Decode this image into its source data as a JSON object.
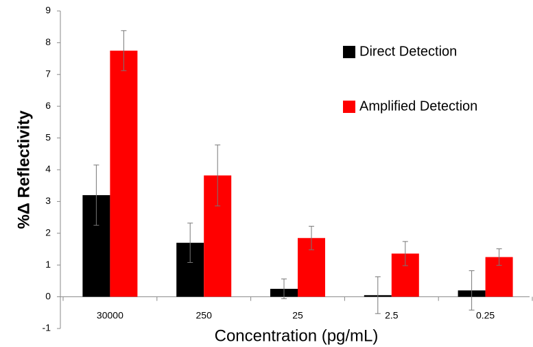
{
  "chart_data": {
    "type": "bar",
    "x_label": "Concentration (pg/mL)",
    "y_label": "%Δ Reflectivity",
    "categories": [
      "30000",
      "250",
      "25",
      "2.5",
      "0.25"
    ],
    "series": [
      {
        "name": "Direct Detection",
        "color": "#000000",
        "values": [
          3.2,
          1.7,
          0.25,
          0.05,
          0.2
        ],
        "errors": [
          0.95,
          0.62,
          0.31,
          0.58,
          0.62
        ]
      },
      {
        "name": "Amplified Detection",
        "color": "#ff0000",
        "values": [
          7.75,
          3.82,
          1.85,
          1.36,
          1.25
        ],
        "errors": [
          0.63,
          0.96,
          0.37,
          0.38,
          0.26
        ]
      }
    ],
    "ylim": [
      -1,
      9
    ],
    "yticks": [
      -1,
      0,
      1,
      2,
      3,
      4,
      5,
      6,
      7,
      8,
      9
    ],
    "legend": "top-right"
  }
}
